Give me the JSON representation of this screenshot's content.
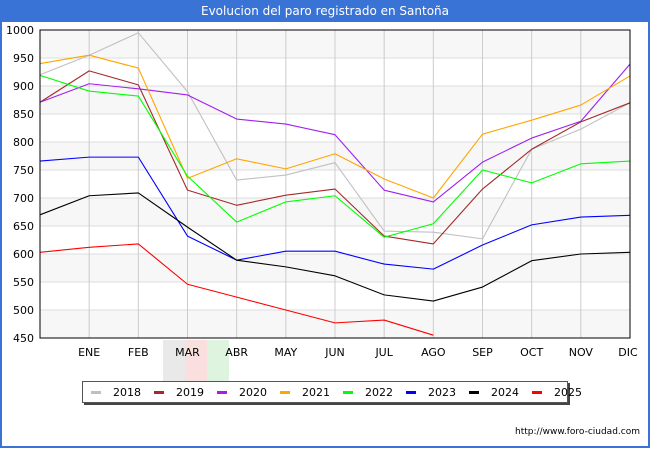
{
  "title": "Evolucion del paro registrado en Santoña",
  "footer": "http://www.foro-ciudad.com",
  "chart_data": {
    "type": "line",
    "title": "Evolucion del paro registrado en Santoña",
    "xlabel": "",
    "ylabel": "",
    "x": [
      "",
      "ENE",
      "FEB",
      "MAR",
      "ABR",
      "MAY",
      "JUN",
      "JUL",
      "AGO",
      "SEP",
      "OCT",
      "NOV",
      "DIC"
    ],
    "ylim": [
      450,
      1000
    ],
    "yticks": [
      450,
      500,
      550,
      600,
      650,
      700,
      750,
      800,
      850,
      900,
      950,
      1000
    ],
    "grid": true,
    "legend_position": "bottom",
    "series": [
      {
        "name": "2018",
        "color": "#c0c0c0",
        "values": [
          920,
          955,
          995,
          890,
          732,
          741,
          763,
          641,
          639,
          627,
          787,
          823,
          870
        ]
      },
      {
        "name": "2019",
        "color": "#a52a2a",
        "values": [
          871,
          927,
          902,
          714,
          687,
          705,
          716,
          632,
          618,
          716,
          787,
          836,
          870
        ]
      },
      {
        "name": "2020",
        "color": "#a020f0",
        "values": [
          871,
          904,
          895,
          884,
          841,
          832,
          813,
          714,
          693,
          764,
          807,
          837,
          939
        ]
      },
      {
        "name": "2021",
        "color": "#ffa500",
        "values": [
          940,
          955,
          932,
          735,
          770,
          752,
          779,
          734,
          700,
          814,
          839,
          866,
          918
        ]
      },
      {
        "name": "2022",
        "color": "#00ff00",
        "values": [
          919,
          891,
          882,
          739,
          657,
          693,
          704,
          630,
          654,
          750,
          727,
          761,
          766
        ]
      },
      {
        "name": "2023",
        "color": "#0000ff",
        "values": [
          766,
          773,
          773,
          632,
          589,
          605,
          605,
          582,
          573,
          616,
          652,
          666,
          669
        ]
      },
      {
        "name": "2024",
        "color": "#000000",
        "values": [
          670,
          704,
          709,
          648,
          589,
          577,
          561,
          527,
          516,
          541,
          588,
          600,
          603
        ]
      },
      {
        "name": "2025",
        "color": "#ff0000",
        "values": [
          603,
          612,
          618,
          546,
          523,
          500,
          477,
          482,
          455
        ]
      }
    ]
  }
}
